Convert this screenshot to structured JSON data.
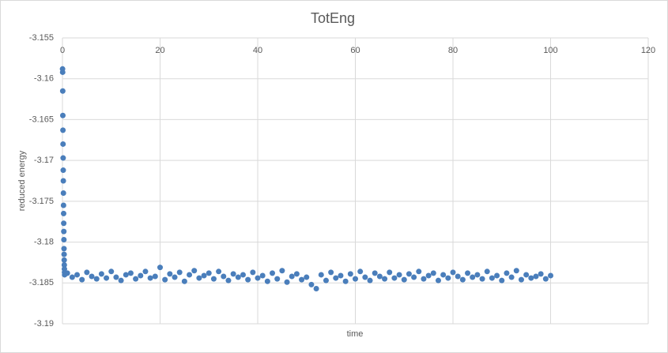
{
  "chart_data": {
    "type": "scatter",
    "title": "TotEng",
    "x_label": "time",
    "y_label": "reduced energy",
    "color": "#4a7ebb",
    "grid": true,
    "xlim": [
      0,
      120
    ],
    "xticks": [
      0,
      20,
      40,
      60,
      80,
      100,
      120
    ],
    "ylim": [
      -3.19,
      -3.155
    ],
    "yticks": [
      -3.155,
      -3.16,
      -3.165,
      -3.17,
      -3.175,
      -3.18,
      -3.185,
      -3.19
    ],
    "x": [
      0.02,
      0.04,
      0.06,
      0.08,
      0.1,
      0.12,
      0.14,
      0.16,
      0.18,
      0.2,
      0.22,
      0.24,
      0.26,
      0.28,
      0.3,
      0.32,
      0.34,
      0.36,
      0.38,
      0.4,
      0.42,
      0.44,
      1,
      2,
      3,
      4,
      5,
      6,
      7,
      8,
      9,
      10,
      11,
      12,
      13,
      14,
      15,
      16,
      17,
      18,
      19,
      20,
      21,
      22,
      23,
      24,
      25,
      26,
      27,
      28,
      29,
      30,
      31,
      32,
      33,
      34,
      35,
      36,
      37,
      38,
      39,
      40,
      41,
      42,
      43,
      44,
      45,
      46,
      47,
      48,
      49,
      50,
      51,
      52,
      53,
      54,
      55,
      56,
      57,
      58,
      59,
      60,
      61,
      62,
      63,
      64,
      65,
      66,
      67,
      68,
      69,
      70,
      71,
      72,
      73,
      74,
      75,
      76,
      77,
      78,
      79,
      80,
      81,
      82,
      83,
      84,
      85,
      86,
      87,
      88,
      89,
      90,
      91,
      92,
      93,
      94,
      95,
      96,
      97,
      98,
      99,
      100
    ],
    "values": [
      -3.1588,
      -3.1592,
      -3.1615,
      -3.1645,
      -3.1663,
      -3.168,
      -3.1697,
      -3.1712,
      -3.1725,
      -3.174,
      -3.1755,
      -3.1765,
      -3.1777,
      -3.1787,
      -3.1797,
      -3.1808,
      -3.1815,
      -3.1822,
      -3.1828,
      -3.1833,
      -3.1837,
      -3.184,
      -3.1838,
      -3.1843,
      -3.184,
      -3.1846,
      -3.1837,
      -3.1842,
      -3.1845,
      -3.1839,
      -3.1844,
      -3.1836,
      -3.1843,
      -3.1847,
      -3.184,
      -3.1838,
      -3.1845,
      -3.1841,
      -3.1836,
      -3.1844,
      -3.1842,
      -3.1831,
      -3.1846,
      -3.1839,
      -3.1843,
      -3.1837,
      -3.1848,
      -3.184,
      -3.1835,
      -3.1844,
      -3.1841,
      -3.1838,
      -3.1845,
      -3.1836,
      -3.1842,
      -3.1847,
      -3.1839,
      -3.1843,
      -3.184,
      -3.1846,
      -3.1837,
      -3.1844,
      -3.1841,
      -3.1848,
      -3.1838,
      -3.1845,
      -3.1835,
      -3.1849,
      -3.1842,
      -3.1839,
      -3.1846,
      -3.1843,
      -3.1852,
      -3.1857,
      -3.184,
      -3.1847,
      -3.1837,
      -3.1844,
      -3.1841,
      -3.1848,
      -3.1839,
      -3.1845,
      -3.1836,
      -3.1843,
      -3.1847,
      -3.1838,
      -3.1842,
      -3.1845,
      -3.1837,
      -3.1844,
      -3.184,
      -3.1846,
      -3.1839,
      -3.1843,
      -3.1836,
      -3.1845,
      -3.1841,
      -3.1838,
      -3.1847,
      -3.184,
      -3.1844,
      -3.1837,
      -3.1842,
      -3.1846,
      -3.1838,
      -3.1843,
      -3.184,
      -3.1845,
      -3.1836,
      -3.1844,
      -3.1841,
      -3.1847,
      -3.1838,
      -3.1843,
      -3.1835,
      -3.1846,
      -3.184,
      -3.1844,
      -3.1842,
      -3.1839,
      -3.1845,
      -3.1841
    ]
  }
}
